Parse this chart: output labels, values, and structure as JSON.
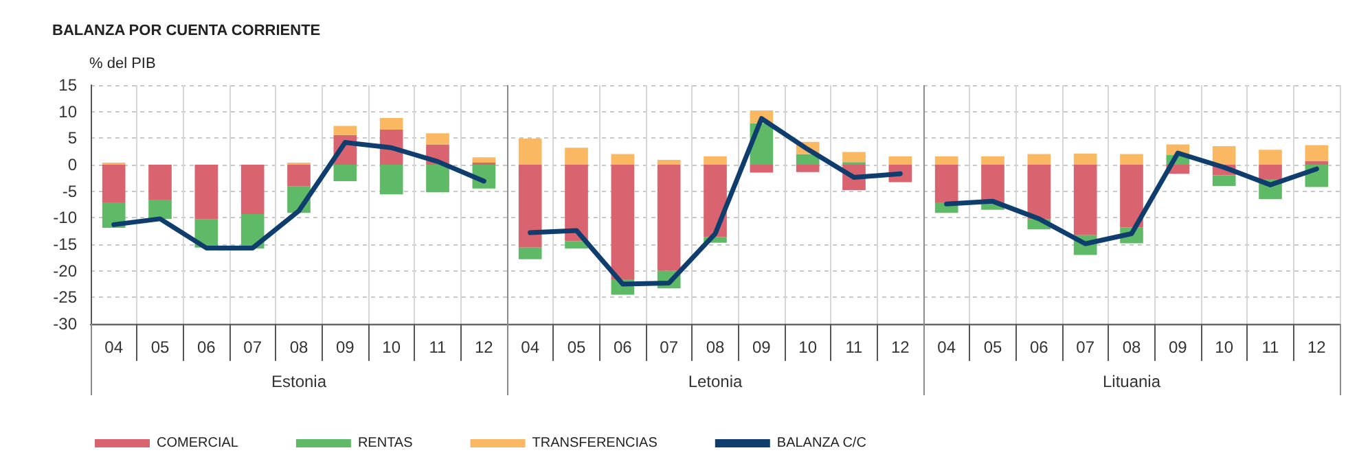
{
  "chart_data": {
    "type": "bar",
    "title": "BALANZA POR CUENTA CORRIENTE",
    "ylabel": "% del PIB",
    "categories": [
      "04",
      "05",
      "06",
      "07",
      "08",
      "09",
      "10",
      "11",
      "12",
      "04",
      "05",
      "06",
      "07",
      "08",
      "09",
      "10",
      "11",
      "12",
      "04",
      "05",
      "06",
      "07",
      "08",
      "09",
      "10",
      "11",
      "12"
    ],
    "annotations": [
      "Estonia",
      "Letonia",
      "Lituania"
    ],
    "stacked": true,
    "series": [
      {
        "name": "COMERCIAL",
        "color": "#d9646f",
        "values": [
          -7.1,
          -6.6,
          -10.3,
          -9.3,
          -4.1,
          5.6,
          6.6,
          3.8,
          0.4,
          -15.6,
          -14.4,
          -21.6,
          -20.0,
          -13.6,
          -1.5,
          -1.4,
          -4.8,
          -3.3,
          -7.1,
          -7.2,
          -10.3,
          -13.3,
          -11.8,
          -1.7,
          -2.0,
          -2.7,
          0.7
        ]
      },
      {
        "name": "RENTAS",
        "color": "#5fba67",
        "values": [
          -4.8,
          -3.6,
          -5.3,
          -6.5,
          -5.0,
          -3.1,
          -5.6,
          -5.2,
          -4.5,
          -2.2,
          -1.4,
          -2.9,
          -3.3,
          -1.1,
          7.8,
          2.0,
          0.5,
          null,
          -2.0,
          -1.3,
          -1.9,
          -3.7,
          -3.0,
          1.8,
          -2.0,
          -3.8,
          -4.2
        ]
      },
      {
        "name": "TRANSFERENCIAS",
        "color": "#fbb862",
        "values": [
          0.4,
          null,
          null,
          null,
          0.4,
          1.7,
          2.2,
          2.1,
          1.0,
          4.9,
          3.2,
          2.0,
          0.9,
          1.6,
          2.4,
          2.3,
          1.9,
          1.6,
          1.6,
          1.6,
          2.0,
          2.1,
          2.0,
          2.0,
          3.5,
          2.8,
          3.0
        ]
      },
      {
        "name": "BALANZA C/C",
        "type": "line",
        "color": "#0f3e6e",
        "values": [
          -11.3,
          -10.2,
          -15.7,
          -15.7,
          -8.7,
          4.2,
          3.2,
          0.6,
          -3.1,
          null,
          null,
          null,
          null,
          null,
          null,
          null,
          null,
          null,
          null,
          null,
          null,
          null,
          null,
          null,
          null,
          null,
          null
        ]
      },
      {
        "type": "line",
        "color": "#0f3e6e",
        "values": [
          null,
          null,
          null,
          null,
          null,
          null,
          null,
          null,
          null,
          -12.8,
          -12.4,
          -22.5,
          -22.3,
          -13.0,
          8.7,
          2.9,
          -2.4,
          -1.7,
          null,
          null,
          null,
          null,
          null,
          null,
          null,
          null,
          null
        ]
      },
      {
        "type": "line",
        "color": "#0f3e6e",
        "values": [
          null,
          null,
          null,
          null,
          null,
          null,
          null,
          null,
          null,
          null,
          null,
          null,
          null,
          null,
          null,
          null,
          null,
          null,
          -7.4,
          -6.9,
          -10.2,
          -14.9,
          -13.0,
          2.2,
          -0.5,
          -3.8,
          -0.8
        ]
      }
    ],
    "ylim": [
      -30,
      15
    ],
    "yticks": [
      -30,
      -25,
      -20,
      -15,
      -10,
      -5,
      0,
      5,
      10,
      15
    ],
    "grid": true,
    "legend": "bottom",
    "marker": "none"
  }
}
